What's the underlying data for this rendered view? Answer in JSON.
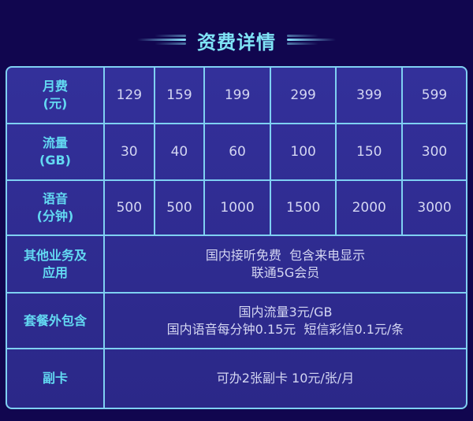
{
  "title": "资费详情",
  "colors": {
    "background": "#11064f",
    "table": "#2f2c92",
    "border": "#7fd0f2",
    "label": "#63d9f2",
    "value": "#d4d6f2"
  },
  "rows": [
    {
      "label": [
        "月费",
        "(元)"
      ],
      "values": [
        "129",
        "159",
        "199",
        "299",
        "399",
        "599"
      ]
    },
    {
      "label": [
        "流量",
        "(GB)"
      ],
      "values": [
        "30",
        "40",
        "60",
        "100",
        "150",
        "300"
      ]
    },
    {
      "label": [
        "语音",
        "(分钟)"
      ],
      "values": [
        "500",
        "500",
        "1000",
        "1500",
        "2000",
        "3000"
      ]
    }
  ],
  "wide_rows": [
    {
      "label": [
        "其他业务及",
        "应用"
      ],
      "lines": [
        "国内接听免费  包含来电显示",
        "联通5G会员"
      ]
    },
    {
      "label": [
        "套餐外包含"
      ],
      "lines": [
        "国内流量3元/GB",
        "国内语音每分钟0.15元  短信彩信0.1元/条"
      ]
    },
    {
      "label": [
        "副卡"
      ],
      "lines": [
        "可办2张副卡 10元/张/月"
      ]
    }
  ]
}
